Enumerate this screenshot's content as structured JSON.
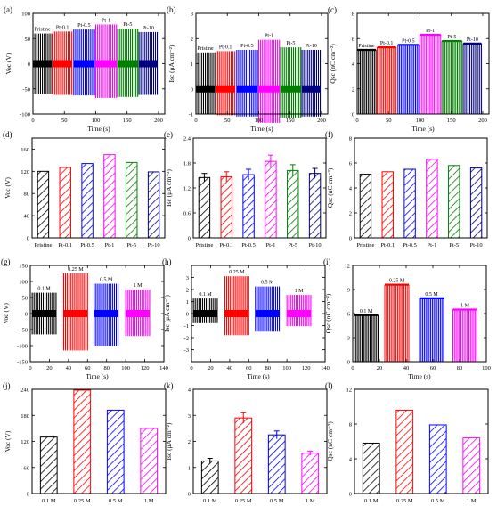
{
  "panel_labels": [
    "(a)",
    "(b)",
    "(c)",
    "(d)",
    "(e)",
    "(f)",
    "(g)",
    "(h)",
    "(i)",
    "(j)",
    "(k)",
    "(l)"
  ],
  "chart_data": [
    {
      "id": "a",
      "type": "bar",
      "subtype": "time-signal",
      "xlabel": "Time (s)",
      "ylabel": "Voc (V)",
      "xlim": [
        0,
        210
      ],
      "ylim": [
        -100,
        100
      ],
      "xticks": [
        0,
        50,
        100,
        150,
        200
      ],
      "yticks": [
        -100,
        -50,
        0,
        50,
        100
      ],
      "series": [
        {
          "name": "Pristine",
          "x": [
            0,
            30
          ],
          "top": 60,
          "bottom": -60,
          "color": "#000000"
        },
        {
          "name": "Pt-0.1",
          "x": [
            32,
            62
          ],
          "top": 64,
          "bottom": -62,
          "color": "#ff0000"
        },
        {
          "name": "Pt-0.5",
          "x": [
            65,
            98
          ],
          "top": 68,
          "bottom": -63,
          "color": "#0000ff"
        },
        {
          "name": "Pt-1",
          "x": [
            100,
            133
          ],
          "top": 78,
          "bottom": -68,
          "color": "#ff00ff"
        },
        {
          "name": "Pt-5",
          "x": [
            135,
            167
          ],
          "top": 70,
          "bottom": -66,
          "color": "#008000"
        },
        {
          "name": "Pt-10",
          "x": [
            169,
            198
          ],
          "top": 63,
          "bottom": -62,
          "color": "#000080"
        }
      ]
    },
    {
      "id": "b",
      "type": "bar",
      "subtype": "time-signal",
      "xlabel": "Time (s)",
      "ylabel": "Isc (μA cm⁻²)",
      "xlim": [
        0,
        210
      ],
      "ylim": [
        -1,
        3
      ],
      "xticks": [
        0,
        50,
        100,
        150,
        200
      ],
      "yticks": [
        -1,
        0,
        1,
        2,
        3
      ],
      "series": [
        {
          "name": "Pristine",
          "x": [
            0,
            30
          ],
          "top": 1.45,
          "bottom": -1.0,
          "color": "#000000"
        },
        {
          "name": "Pt-0.1",
          "x": [
            32,
            62
          ],
          "top": 1.5,
          "bottom": -1.05,
          "color": "#ff0000"
        },
        {
          "name": "Pt-0.5",
          "x": [
            65,
            98
          ],
          "top": 1.55,
          "bottom": -1.1,
          "color": "#0000ff"
        },
        {
          "name": "Pt-1",
          "x": [
            100,
            133
          ],
          "top": 1.95,
          "bottom": -1.35,
          "color": "#ff00ff"
        },
        {
          "name": "Pt-5",
          "x": [
            135,
            167
          ],
          "top": 1.65,
          "bottom": -1.15,
          "color": "#008000"
        },
        {
          "name": "Pt-10",
          "x": [
            169,
            198
          ],
          "top": 1.55,
          "bottom": -1.1,
          "color": "#000080"
        }
      ]
    },
    {
      "id": "c",
      "type": "area",
      "subtype": "time-plateau",
      "xlabel": "Time (s)",
      "ylabel": "Qsc (nC cm⁻²)",
      "xlim": [
        0,
        210
      ],
      "ylim": [
        0,
        8
      ],
      "xticks": [
        0,
        50,
        100,
        150,
        200
      ],
      "yticks": [
        0,
        2,
        4,
        6,
        8
      ],
      "series": [
        {
          "name": "Pristine",
          "x": [
            0,
            30
          ],
          "value": 5.1,
          "color": "#000000"
        },
        {
          "name": "Pt-0.1",
          "x": [
            32,
            62
          ],
          "value": 5.3,
          "color": "#ff0000"
        },
        {
          "name": "Pt-0.5",
          "x": [
            65,
            98
          ],
          "value": 5.5,
          "color": "#0000ff"
        },
        {
          "name": "Pt-1",
          "x": [
            100,
            133
          ],
          "value": 6.3,
          "color": "#ff00ff"
        },
        {
          "name": "Pt-5",
          "x": [
            135,
            167
          ],
          "value": 5.8,
          "color": "#008000"
        },
        {
          "name": "Pt-10",
          "x": [
            169,
            198
          ],
          "value": 5.6,
          "color": "#000080"
        }
      ]
    },
    {
      "id": "d",
      "type": "bar",
      "ylabel": "Voc (V)",
      "ylim": [
        0,
        180
      ],
      "yticks": [
        0,
        40,
        80,
        120,
        160
      ],
      "categories": [
        "Pristine",
        "Pt-0.1",
        "Pt-0.5",
        "Pt-1",
        "Pt-5",
        "Pt-10"
      ],
      "values": [
        120,
        127,
        134,
        150,
        136,
        119
      ],
      "colors": [
        "#000000",
        "#ff0000",
        "#0000ff",
        "#ff00ff",
        "#008000",
        "#000080"
      ]
    },
    {
      "id": "e",
      "type": "bar",
      "ylabel": "Isc (μA cm⁻²)",
      "ylim": [
        0,
        2.4
      ],
      "yticks": [
        0,
        0.6,
        1.2,
        1.8,
        2.4
      ],
      "categories": [
        "Pristine",
        "Pt-0.1",
        "Pt-0.5",
        "Pt-1",
        "Pt-5",
        "Pt-10"
      ],
      "values": [
        1.45,
        1.47,
        1.52,
        1.84,
        1.62,
        1.55
      ],
      "errors": [
        0.1,
        0.12,
        0.13,
        0.15,
        0.14,
        0.12
      ],
      "colors": [
        "#000000",
        "#ff0000",
        "#0000ff",
        "#ff00ff",
        "#008000",
        "#000080"
      ]
    },
    {
      "id": "f",
      "type": "bar",
      "ylabel": "Qsc (nC cm⁻²)",
      "ylim": [
        0,
        8
      ],
      "yticks": [
        0,
        2,
        4,
        6,
        8
      ],
      "categories": [
        "Pristine",
        "Pt-0.1",
        "Pt-0.5",
        "Pt-1",
        "Pt-5",
        "Pt-10"
      ],
      "values": [
        5.1,
        5.3,
        5.5,
        6.3,
        5.8,
        5.6
      ],
      "colors": [
        "#000000",
        "#ff0000",
        "#0000ff",
        "#ff00ff",
        "#008000",
        "#000080"
      ]
    },
    {
      "id": "g",
      "type": "bar",
      "subtype": "time-signal",
      "xlabel": "Time (s)",
      "ylabel": "Voc (V)",
      "xlim": [
        0,
        140
      ],
      "ylim": [
        -150,
        150
      ],
      "xticks": [
        0,
        20,
        40,
        60,
        80,
        100,
        120,
        140
      ],
      "yticks": [
        -150,
        -100,
        -50,
        0,
        50,
        100,
        150
      ],
      "series": [
        {
          "name": "0.1 M",
          "x": [
            2,
            27
          ],
          "top": 65,
          "bottom": -65,
          "color": "#000000"
        },
        {
          "name": "0.25 M",
          "x": [
            35,
            60
          ],
          "top": 125,
          "bottom": -115,
          "color": "#ff0000"
        },
        {
          "name": "0.5 M",
          "x": [
            67,
            92
          ],
          "top": 93,
          "bottom": -100,
          "color": "#0000ff"
        },
        {
          "name": "1 M",
          "x": [
            100,
            125
          ],
          "top": 75,
          "bottom": -70,
          "color": "#ff00ff"
        }
      ]
    },
    {
      "id": "h",
      "type": "bar",
      "subtype": "time-signal",
      "xlabel": "Time (s)",
      "ylabel": "Isc (μA cm⁻²)",
      "xlim": [
        0,
        140
      ],
      "ylim": [
        -4,
        4
      ],
      "xticks": [
        0,
        20,
        40,
        60,
        80,
        100,
        120,
        140
      ],
      "yticks": [
        -3,
        -2,
        -1,
        0,
        1,
        2,
        3
      ],
      "series": [
        {
          "name": "0.1 M",
          "x": [
            2,
            27
          ],
          "top": 1.25,
          "bottom": -0.8,
          "color": "#000000"
        },
        {
          "name": "0.25 M",
          "x": [
            35,
            60
          ],
          "top": 3.1,
          "bottom": -1.8,
          "color": "#ff0000"
        },
        {
          "name": "0.5 M",
          "x": [
            67,
            92
          ],
          "top": 2.25,
          "bottom": -1.5,
          "color": "#0000ff"
        },
        {
          "name": "1 M",
          "x": [
            100,
            125
          ],
          "top": 1.55,
          "bottom": -1.05,
          "color": "#ff00ff"
        }
      ]
    },
    {
      "id": "i",
      "type": "area",
      "subtype": "time-plateau",
      "xlabel": "Time (s)",
      "ylabel": "Qsc (nC cm⁻²)",
      "xlim": [
        0,
        100
      ],
      "ylim": [
        0,
        12
      ],
      "xticks": [
        0,
        20,
        40,
        60,
        80,
        100
      ],
      "yticks": [
        0,
        3,
        6,
        9,
        12
      ],
      "series": [
        {
          "name": "0.1 M",
          "x": [
            1,
            19
          ],
          "value": 5.8,
          "color": "#000000"
        },
        {
          "name": "0.25 M",
          "x": [
            24,
            42
          ],
          "value": 9.6,
          "color": "#ff0000"
        },
        {
          "name": "0.5 M",
          "x": [
            50,
            68
          ],
          "value": 7.9,
          "color": "#0000ff"
        },
        {
          "name": "1 M",
          "x": [
            75,
            93
          ],
          "value": 6.5,
          "color": "#ff00ff"
        }
      ]
    },
    {
      "id": "j",
      "type": "bar",
      "ylabel": "Voc (V)",
      "ylim": [
        0,
        240
      ],
      "yticks": [
        0,
        60,
        120,
        180,
        240
      ],
      "categories": [
        "0.1 M",
        "0.25 M",
        "0.5 M",
        "1 M"
      ],
      "values": [
        130,
        238,
        192,
        150
      ],
      "colors": [
        "#000000",
        "#ff0000",
        "#0000ff",
        "#ff00ff"
      ]
    },
    {
      "id": "k",
      "type": "bar",
      "ylabel": "Isc (μA cm⁻²)",
      "ylim": [
        0,
        4
      ],
      "yticks": [
        0,
        1,
        2,
        3,
        4
      ],
      "categories": [
        "0.1 M",
        "0.25 M",
        "0.5 M",
        "1 M"
      ],
      "values": [
        1.25,
        2.9,
        2.25,
        1.55
      ],
      "errors": [
        0.1,
        0.2,
        0.15,
        0.08
      ],
      "colors": [
        "#000000",
        "#ff0000",
        "#0000ff",
        "#ff00ff"
      ]
    },
    {
      "id": "l",
      "type": "bar",
      "ylabel": "Qsc (nC cm⁻²)",
      "ylim": [
        0,
        12
      ],
      "yticks": [
        0,
        4,
        8,
        12
      ],
      "categories": [
        "0.1 M",
        "0.25 M",
        "0.5 M",
        "1 M"
      ],
      "values": [
        5.8,
        9.6,
        7.9,
        6.4
      ],
      "colors": [
        "#000000",
        "#ff0000",
        "#0000ff",
        "#ff00ff"
      ]
    }
  ]
}
